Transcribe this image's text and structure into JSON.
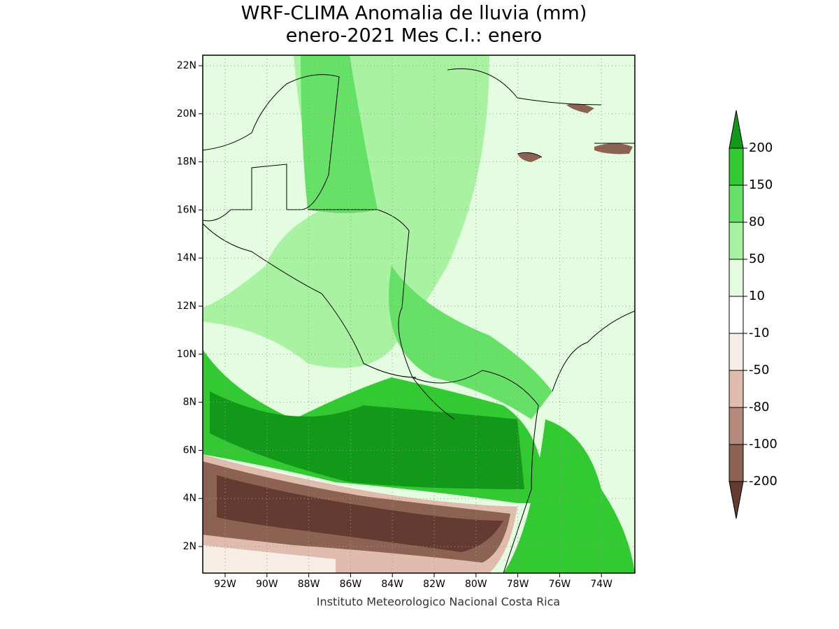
{
  "header": {
    "title": [
      "WRF-CLIMA Anomalia de lluvia (mm)",
      "enero-2021 Mes C.I.: enero"
    ]
  },
  "map": {
    "lat_ticks": [
      "22N",
      "20N",
      "18N",
      "16N",
      "14N",
      "12N",
      "10N",
      "8N",
      "6N",
      "4N",
      "2N"
    ],
    "lon_ticks": [
      "92W",
      "90W",
      "88W",
      "86W",
      "84W",
      "82W",
      "80W",
      "78W",
      "76W",
      "74W"
    ]
  },
  "colorbar": {
    "levels": [
      "200",
      "150",
      "80",
      "50",
      "10",
      "-10",
      "-50",
      "-80",
      "-100",
      "-200"
    ],
    "colors": [
      "#13991a",
      "#33c933",
      "#66e066",
      "#a9f2a2",
      "#e4fce0",
      "#ffffff",
      "#f6eee4",
      "#dfbcae",
      "#b48a7c",
      "#8c6252",
      "#633b30"
    ]
  },
  "footer": "Instituto Meteorologico Nacional Costa Rica"
}
